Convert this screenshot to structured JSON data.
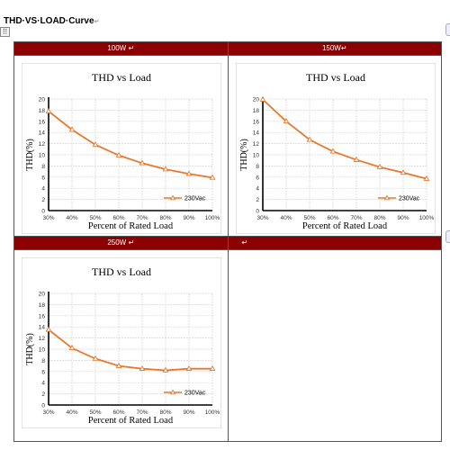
{
  "document": {
    "title": "THD·VS·LOAD·Curve",
    "title_mark": "↵",
    "move_handle": "⠿"
  },
  "panels": [
    {
      "header": "100W",
      "header_mark": " ↵"
    },
    {
      "header": "150W",
      "header_mark": "↵"
    },
    {
      "header": "250W",
      "header_mark": " ↵"
    },
    {
      "header": "",
      "header_mark": "↵"
    }
  ],
  "cell_marks": {
    "first_col": "↵",
    "second_col": "↵"
  },
  "chart_data": [
    {
      "type": "line",
      "title": "THD vs Load",
      "xlabel": "Percent of Rated Load",
      "ylabel": "THD(%)",
      "x": [
        "30%",
        "40%",
        "50%",
        "60%",
        "70%",
        "80%",
        "90%",
        "100%"
      ],
      "ylim": [
        0,
        20
      ],
      "yticks": [
        0,
        2,
        4,
        6,
        8,
        10,
        12,
        14,
        16,
        18,
        20
      ],
      "grid": true,
      "legend_position": "lower-right",
      "series": [
        {
          "name": "230Vac",
          "values": [
            17.8,
            14.5,
            11.8,
            9.9,
            8.5,
            7.4,
            6.6,
            5.9
          ],
          "color": "#e8782a"
        }
      ]
    },
    {
      "type": "line",
      "title": "THD vs Load",
      "xlabel": "Percent of Rated Load",
      "ylabel": "THD(%)",
      "x": [
        "30%",
        "40%",
        "50%",
        "60%",
        "70%",
        "80%",
        "90%",
        "100%"
      ],
      "ylim": [
        0,
        20
      ],
      "yticks": [
        0,
        2,
        4,
        6,
        8,
        10,
        12,
        14,
        16,
        18,
        20
      ],
      "grid": true,
      "legend_position": "lower-right",
      "series": [
        {
          "name": "230Vac",
          "values": [
            19.9,
            16.0,
            12.7,
            10.6,
            9.1,
            7.8,
            6.8,
            5.7
          ],
          "color": "#e8782a"
        }
      ]
    },
    {
      "type": "line",
      "title": "THD vs Load",
      "xlabel": "Percent of Rated Load",
      "ylabel": "THD(%)",
      "x": [
        "30%",
        "40%",
        "50%",
        "60%",
        "70%",
        "80%",
        "90%",
        "100%"
      ],
      "ylim": [
        0,
        20
      ],
      "yticks": [
        0,
        2,
        4,
        6,
        8,
        10,
        12,
        14,
        16,
        18,
        20
      ],
      "grid": true,
      "legend_position": "lower-right",
      "series": [
        {
          "name": "230Vac",
          "values": [
            13.5,
            10.2,
            8.3,
            7.0,
            6.5,
            6.2,
            6.5,
            6.5
          ],
          "color": "#e8782a"
        }
      ]
    }
  ]
}
